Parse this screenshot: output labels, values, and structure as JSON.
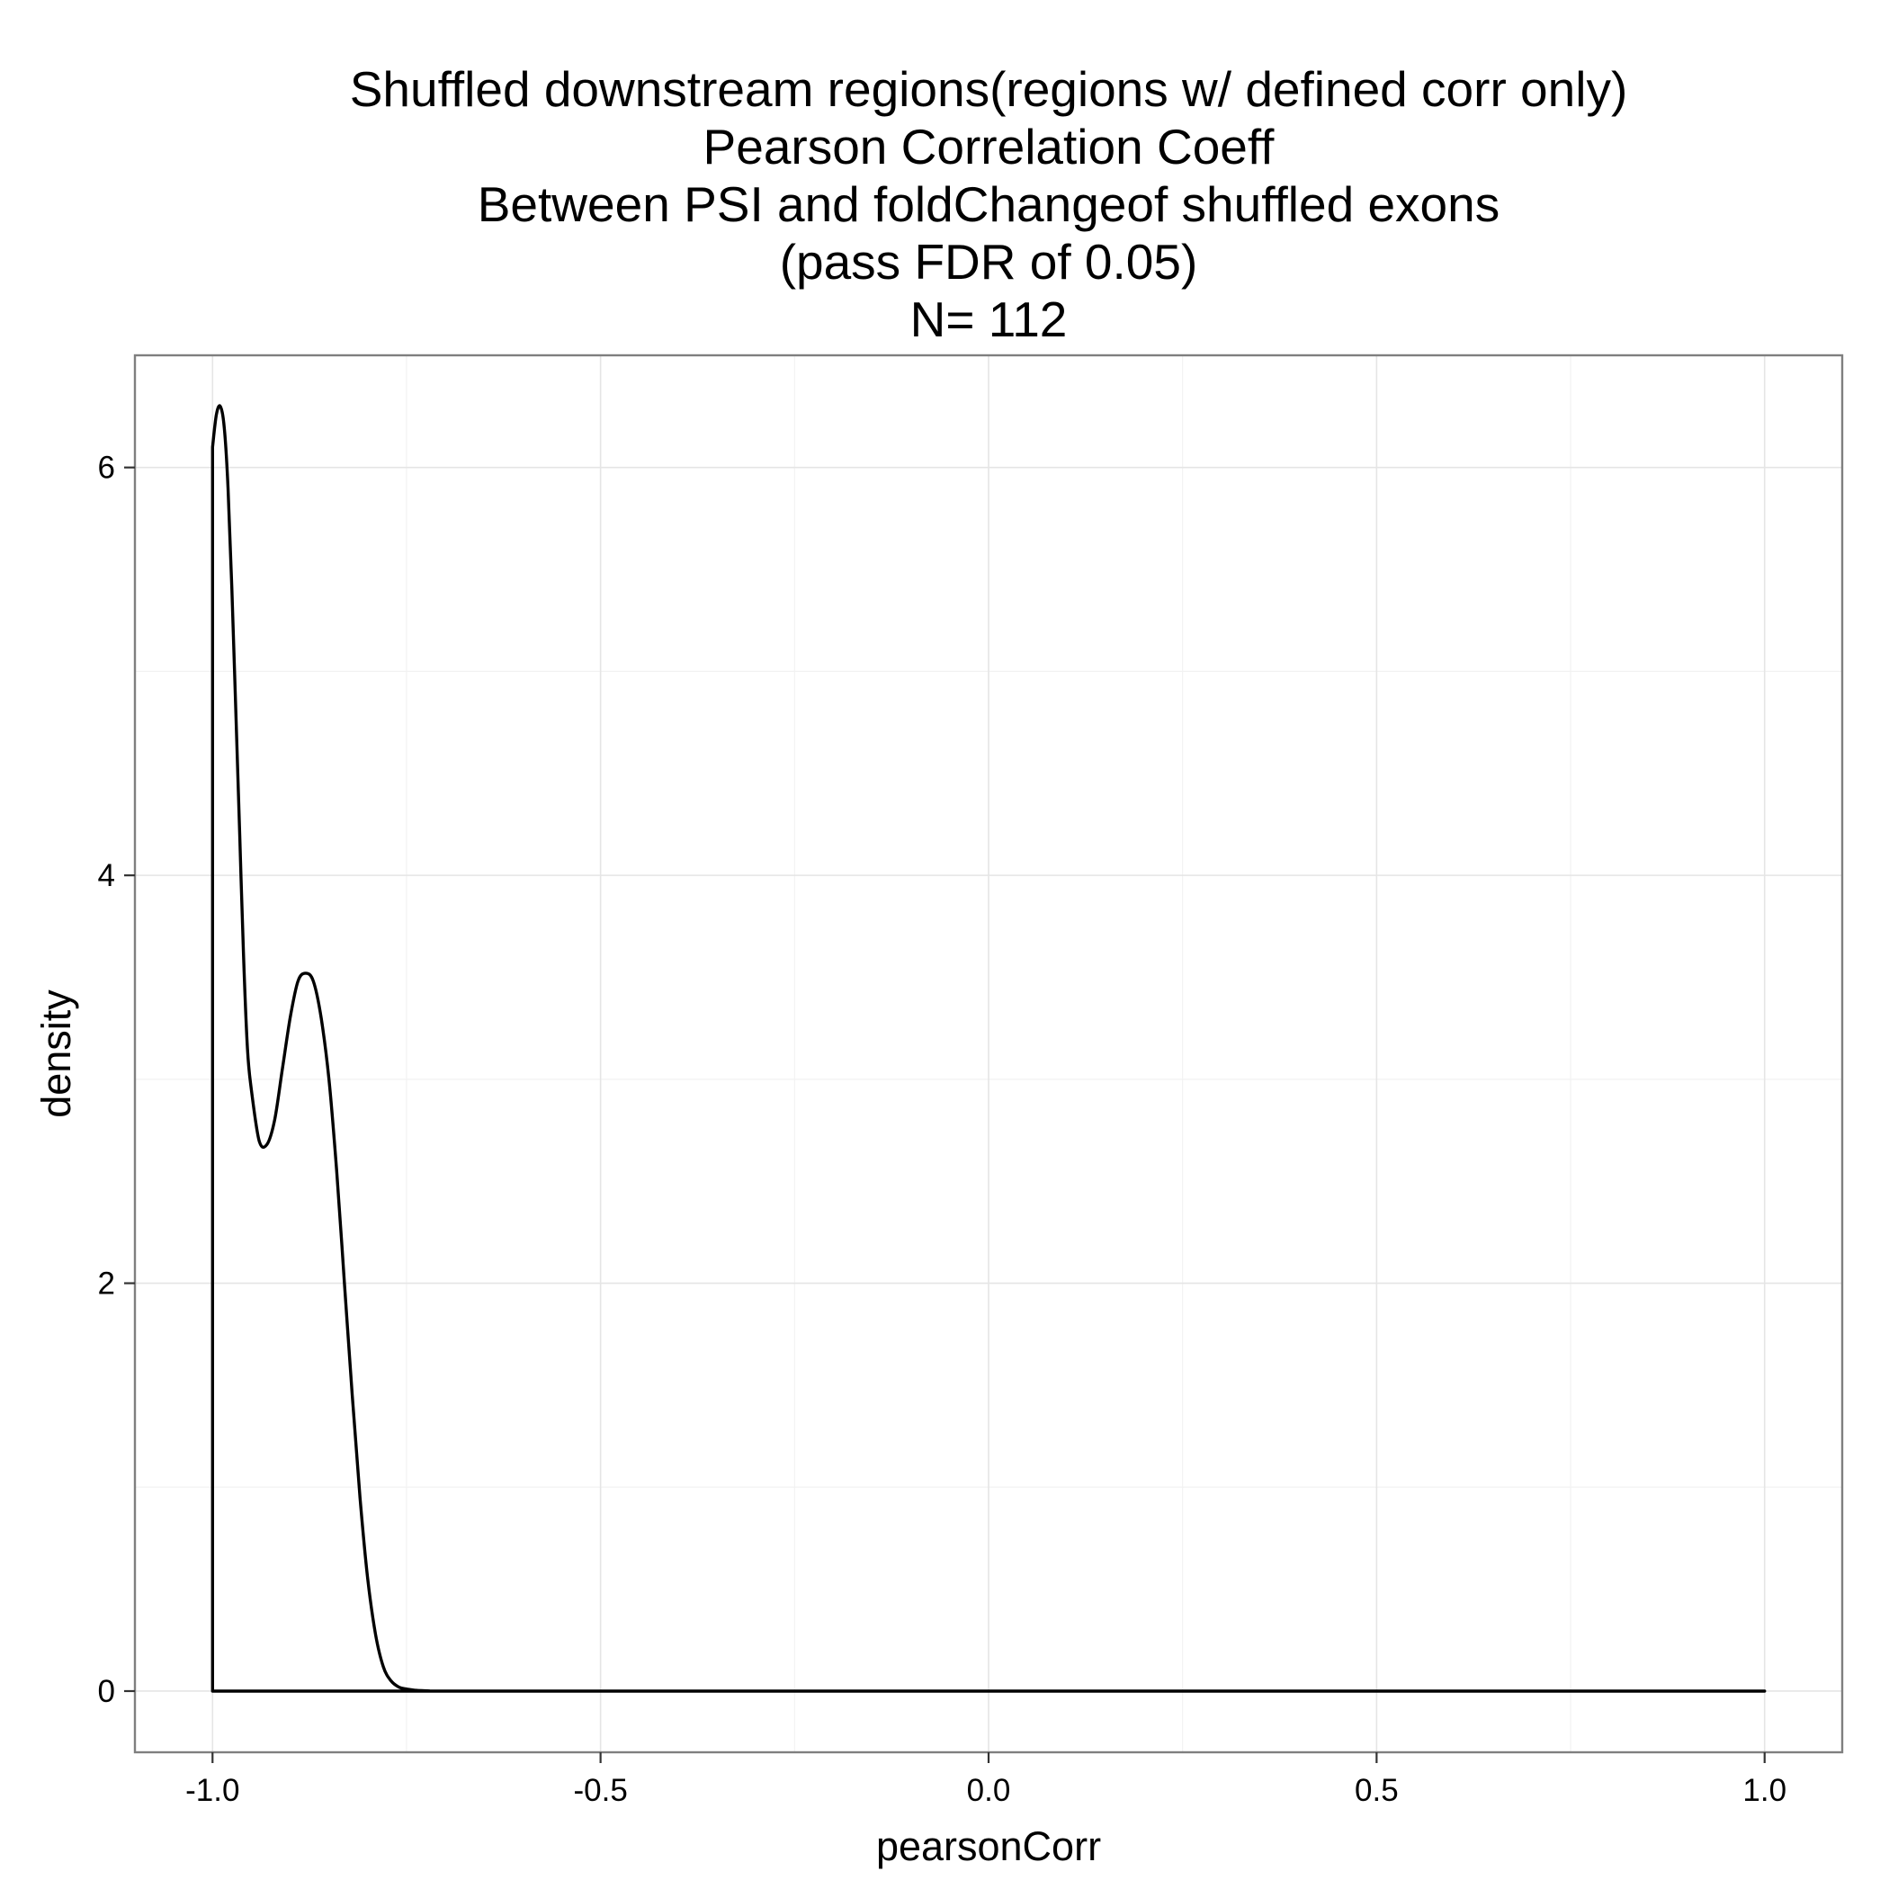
{
  "chart_data": {
    "type": "area",
    "title_lines": [
      "Shuffled downstream regions(regions w/ defined corr only)",
      "Pearson Correlation Coeff",
      "Between PSI and foldChangeof shuffled exons",
      "(pass FDR of 0.05)",
      "N= 112"
    ],
    "xlabel": "pearsonCorr",
    "ylabel": "density",
    "xlim": [
      -1.1,
      1.1
    ],
    "ylim": [
      -0.3,
      6.55
    ],
    "x_ticks": [
      -1.0,
      -0.5,
      0.0,
      0.5,
      1.0
    ],
    "x_tick_labels": [
      "-1.0",
      "-0.5",
      "0.0",
      "0.5",
      "1.0"
    ],
    "y_ticks": [
      0,
      2,
      4,
      6
    ],
    "y_tick_labels": [
      "0",
      "2",
      "4",
      "6"
    ],
    "grid": true,
    "series": [
      {
        "x": [
          -1.0,
          -0.995,
          -0.99,
          -0.985,
          -0.98,
          -0.975,
          -0.97,
          -0.965,
          -0.96,
          -0.955,
          -0.95,
          -0.94,
          -0.93,
          -0.92,
          -0.91,
          -0.9,
          -0.89,
          -0.88,
          -0.87,
          -0.86,
          -0.85,
          -0.84,
          -0.83,
          -0.82,
          -0.81,
          -0.8,
          -0.79,
          -0.78,
          -0.77,
          -0.76,
          -0.75,
          -0.74,
          -0.73,
          -0.72,
          -0.71,
          -0.7,
          -0.69,
          -0.68,
          -0.6,
          -0.4,
          -0.2,
          0.0,
          0.2,
          0.4,
          0.6,
          0.8,
          1.0
        ],
        "y": [
          6.1,
          6.26,
          6.3,
          6.2,
          5.9,
          5.4,
          4.8,
          4.2,
          3.6,
          3.15,
          2.95,
          2.7,
          2.68,
          2.8,
          3.05,
          3.3,
          3.48,
          3.52,
          3.48,
          3.3,
          3.0,
          2.55,
          2.0,
          1.45,
          0.95,
          0.55,
          0.28,
          0.12,
          0.05,
          0.02,
          0.01,
          0.005,
          0.002,
          0.001,
          0.0005,
          0.0002,
          0.0001,
          0.0,
          0.0,
          0.0,
          0.0,
          0.0,
          0.0,
          0.0,
          0.0,
          0.0,
          0.0
        ]
      }
    ]
  }
}
